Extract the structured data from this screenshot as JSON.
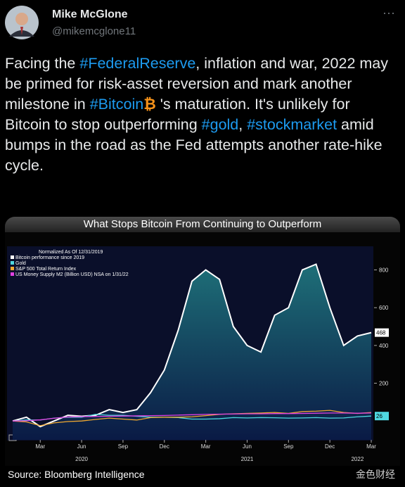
{
  "tweet": {
    "author": {
      "name": "Mike McGlone",
      "handle": "@mikemcglone11"
    },
    "text": [
      "Facing the ",
      "#FederalReserve",
      ", inflation and war, 2022 may be primed for risk-asset reversion and mark another milestone in ",
      "#Bitcoin",
      " 's maturation. It's unlikely for Bitcoin to stop outperforming ",
      "#gold",
      ", ",
      "#stockmarket",
      " amid bumps in the road as the Fed attempts another rate-hike cycle."
    ],
    "source": "Source: Bloomberg Intelligence",
    "watermark": "金色财经"
  },
  "chart_data": {
    "type": "line",
    "title": "What Stops Bitcoin From Continuing to Outperform",
    "legend_title": "Normalized As Of 12/31/2019",
    "x": [
      "2020-01",
      "2020-02",
      "2020-03",
      "2020-04",
      "2020-05",
      "2020-06",
      "2020-07",
      "2020-08",
      "2020-09",
      "2020-10",
      "2020-11",
      "2020-12",
      "2021-01",
      "2021-02",
      "2021-03",
      "2021-04",
      "2021-05",
      "2021-06",
      "2021-07",
      "2021-08",
      "2021-09",
      "2021-10",
      "2021-11",
      "2021-12",
      "2022-01",
      "2022-02",
      "2022-03"
    ],
    "series": [
      {
        "name": "Bitcoin performance since 2019",
        "color": "#ffffff",
        "values": [
          0,
          20,
          -30,
          0,
          30,
          25,
          30,
          60,
          45,
          60,
          150,
          270,
          480,
          740,
          800,
          750,
          500,
          400,
          365,
          560,
          600,
          800,
          830,
          600,
          400,
          450,
          468
        ]
      },
      {
        "name": "Gold",
        "color": "#4fd8e0",
        "values": [
          0,
          5,
          5,
          15,
          20,
          20,
          35,
          30,
          30,
          25,
          20,
          20,
          18,
          10,
          10,
          12,
          18,
          16,
          18,
          17,
          15,
          16,
          18,
          15,
          16,
          22,
          26
        ]
      },
      {
        "name": "S&P 500 Total Return Index",
        "color": "#f0a830",
        "values": [
          0,
          -5,
          -25,
          -10,
          -3,
          0,
          8,
          15,
          10,
          5,
          18,
          20,
          20,
          22,
          28,
          35,
          38,
          40,
          42,
          45,
          40,
          50,
          52,
          56,
          45,
          40,
          45
        ]
      },
      {
        "name": "US Money Supply M2 (Billion USD) NSA on 1/31/22",
        "color": "#e040e0",
        "values": [
          0,
          1,
          6,
          14,
          21,
          23,
          24,
          25,
          26,
          27,
          28,
          29,
          31,
          33,
          35,
          36,
          37,
          38,
          38,
          39,
          39,
          40,
          41,
          42,
          42,
          41,
          42
        ]
      }
    ],
    "ylim": [
      -100,
      925
    ],
    "yticks": [
      200,
      400,
      600,
      800
    ],
    "xticks": [
      {
        "value": "2020-03",
        "label": "Mar"
      },
      {
        "value": "2020-06",
        "label": "Jun"
      },
      {
        "value": "2020-09",
        "label": "Sep"
      },
      {
        "value": "2020-12",
        "label": "Dec"
      },
      {
        "value": "2021-03",
        "label": "Mar"
      },
      {
        "value": "2021-06",
        "label": "Jun"
      },
      {
        "value": "2021-09",
        "label": "Sep"
      },
      {
        "value": "2021-12",
        "label": "Dec"
      },
      {
        "value": "2022-03",
        "label": "Mar"
      }
    ],
    "year_labels": [
      {
        "value": "2020-06",
        "label": "2020"
      },
      {
        "value": "2021-06",
        "label": "2021"
      },
      {
        "value": "2022-02",
        "label": "2022"
      }
    ]
  }
}
